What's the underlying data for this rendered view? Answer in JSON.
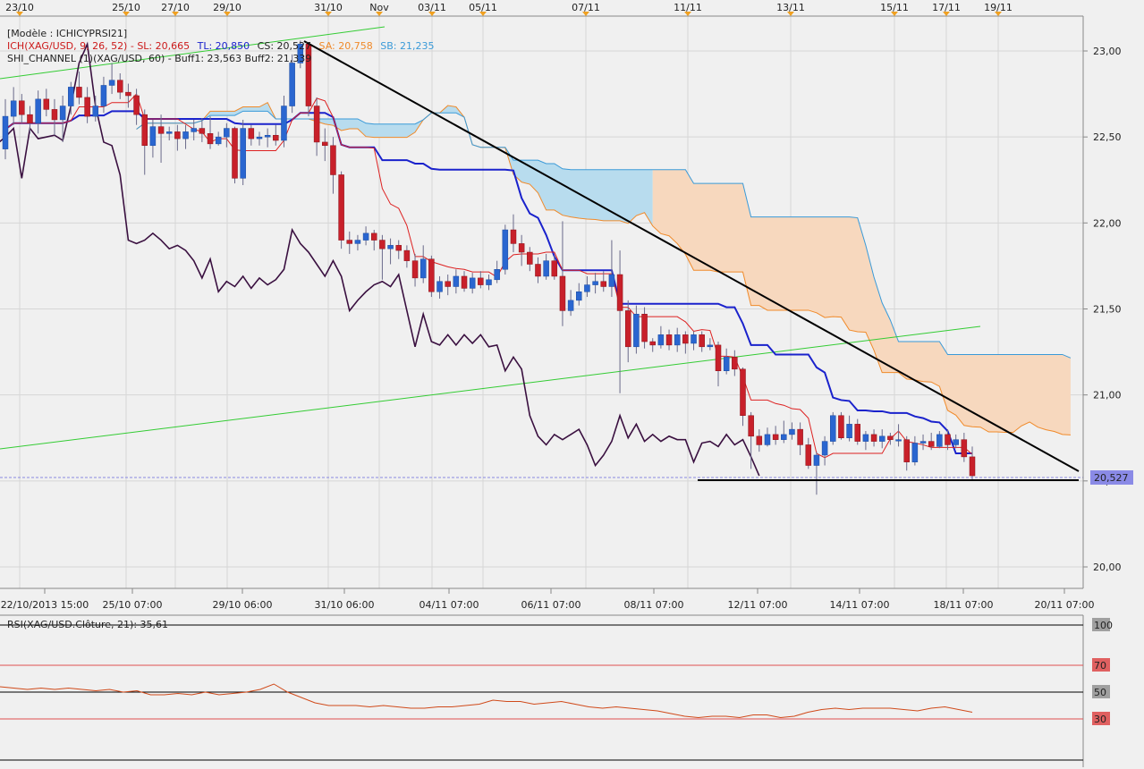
{
  "chart_data": {
    "type": "candlestick",
    "top_dates": [
      "23/10",
      "25/10",
      "27/10",
      "29/10",
      "31/10",
      "Nov",
      "03/11",
      "05/11",
      "07/11",
      "11/11",
      "13/11",
      "15/11",
      "17/11",
      "19/11"
    ],
    "bottom_dates": [
      "22/10/2013 15:00",
      "25/10 07:00",
      "29/10 06:00",
      "31/10 06:00",
      "04/11 07:00",
      "06/11 07:00",
      "08/11 07:00",
      "12/11 07:00",
      "14/11 07:00",
      "18/11 07:00",
      "20/11 07:00"
    ],
    "price_ticks": [
      "23,00",
      "22,50",
      "22,00",
      "21,50",
      "21,00",
      "20,50",
      "20,00"
    ],
    "price_tick_values": [
      23.0,
      22.5,
      22.0,
      21.5,
      21.0,
      20.5,
      20.0
    ],
    "ylim": [
      19.99,
      23.06
    ],
    "current_price_label": "20,527",
    "current_price": 20.527,
    "legend": {
      "model": "[Modèle : ICHICYPRSI21]",
      "ichimoku": {
        "prefix": "ICH(XAG/USD, 9, 26, 52) -  SL: 20,665",
        "tl": "TL: 20,850",
        "cs": "CS: 20,527",
        "sa": "SA: 20,758",
        "sb": "SB: 21,235"
      },
      "channel": "SHI_CHANNEL (1)(XAG/USD, 60) -  Buff1: 23,563  Buff2: 21,339"
    },
    "rsi": {
      "label": "RSI(XAG/USD.Clôture, 21): 35,61",
      "ticks": [
        "100",
        "70",
        "50",
        "30"
      ],
      "tick_values": [
        100,
        70,
        50,
        30
      ],
      "values": [
        54,
        53,
        52,
        53,
        52,
        53,
        52,
        51,
        52,
        50,
        51,
        48,
        48,
        49,
        48,
        50,
        48,
        49,
        50,
        52,
        56,
        50,
        46,
        42,
        40,
        40,
        40,
        39,
        40,
        39,
        38,
        38,
        39,
        39,
        40,
        41,
        44,
        43,
        43,
        41,
        42,
        43,
        41,
        39,
        38,
        39,
        38,
        37,
        36,
        34,
        32,
        31,
        32,
        32,
        31,
        33,
        33,
        31,
        32,
        35,
        37,
        38,
        37,
        38,
        38,
        38,
        37,
        36,
        38,
        39,
        37,
        35
      ]
    },
    "candles": [
      [
        22.43,
        22.62,
        22.72,
        22.37
      ],
      [
        22.62,
        22.71,
        22.79,
        22.57
      ],
      [
        22.71,
        22.63,
        22.75,
        22.58
      ],
      [
        22.63,
        22.58,
        22.68,
        22.52
      ],
      [
        22.58,
        22.72,
        22.77,
        22.52
      ],
      [
        22.72,
        22.66,
        22.78,
        22.62
      ],
      [
        22.66,
        22.6,
        22.72,
        22.51
      ],
      [
        22.6,
        22.68,
        22.74,
        22.47
      ],
      [
        22.68,
        22.79,
        22.82,
        22.63
      ],
      [
        22.79,
        22.73,
        22.88,
        22.69
      ],
      [
        22.73,
        22.62,
        22.79,
        22.58
      ],
      [
        22.62,
        22.68,
        22.74,
        22.59
      ],
      [
        22.68,
        22.8,
        22.85,
        22.64
      ],
      [
        22.8,
        22.83,
        22.93,
        22.75
      ],
      [
        22.83,
        22.76,
        22.87,
        22.72
      ],
      [
        22.76,
        22.74,
        22.81,
        22.67
      ],
      [
        22.74,
        22.63,
        22.78,
        22.57
      ],
      [
        22.63,
        22.45,
        22.66,
        22.28
      ],
      [
        22.45,
        22.56,
        22.6,
        22.38
      ],
      [
        22.56,
        22.52,
        22.63,
        22.35
      ],
      [
        22.52,
        22.53,
        22.56,
        22.48
      ],
      [
        22.53,
        22.49,
        22.57,
        22.42
      ],
      [
        22.49,
        22.53,
        22.57,
        22.43
      ],
      [
        22.53,
        22.55,
        22.6,
        22.48
      ],
      [
        22.55,
        22.52,
        22.61,
        22.47
      ],
      [
        22.52,
        22.46,
        22.62,
        22.43
      ],
      [
        22.46,
        22.5,
        22.53,
        22.45
      ],
      [
        22.5,
        22.55,
        22.58,
        22.44
      ],
      [
        22.55,
        22.26,
        22.56,
        22.23
      ],
      [
        22.26,
        22.55,
        22.6,
        22.22
      ],
      [
        22.55,
        22.49,
        22.57,
        22.45
      ],
      [
        22.49,
        22.5,
        22.53,
        22.45
      ],
      [
        22.5,
        22.51,
        22.55,
        22.44
      ],
      [
        22.51,
        22.48,
        22.57,
        22.45
      ],
      [
        22.48,
        22.68,
        22.74,
        22.44
      ],
      [
        22.68,
        22.93,
        22.98,
        22.64
      ],
      [
        22.93,
        23.04,
        23.06,
        22.9
      ],
      [
        23.04,
        22.68,
        23.05,
        22.62
      ],
      [
        22.68,
        22.47,
        22.73,
        22.39
      ],
      [
        22.47,
        22.45,
        22.55,
        22.36
      ],
      [
        22.45,
        22.28,
        22.5,
        22.17
      ],
      [
        22.28,
        21.9,
        22.3,
        21.85
      ],
      [
        21.9,
        21.88,
        21.95,
        21.82
      ],
      [
        21.88,
        21.9,
        21.93,
        21.84
      ],
      [
        21.9,
        21.94,
        21.98,
        21.87
      ],
      [
        21.94,
        21.9,
        21.96,
        21.84
      ],
      [
        21.9,
        21.85,
        21.93,
        21.67
      ],
      [
        21.85,
        21.87,
        21.91,
        21.76
      ],
      [
        21.87,
        21.84,
        21.9,
        21.79
      ],
      [
        21.84,
        21.78,
        21.87,
        21.74
      ],
      [
        21.78,
        21.68,
        21.82,
        21.63
      ],
      [
        21.68,
        21.79,
        21.87,
        21.65
      ],
      [
        21.79,
        21.6,
        21.81,
        21.57
      ],
      [
        21.6,
        21.66,
        21.69,
        21.56
      ],
      [
        21.66,
        21.63,
        21.7,
        21.58
      ],
      [
        21.63,
        21.69,
        21.73,
        21.59
      ],
      [
        21.69,
        21.62,
        21.72,
        21.6
      ],
      [
        21.62,
        21.68,
        21.71,
        21.59
      ],
      [
        21.68,
        21.64,
        21.72,
        21.62
      ],
      [
        21.64,
        21.67,
        21.7,
        21.61
      ],
      [
        21.67,
        21.73,
        21.78,
        21.65
      ],
      [
        21.73,
        21.96,
        21.99,
        21.7
      ],
      [
        21.96,
        21.88,
        22.05,
        21.83
      ],
      [
        21.88,
        21.83,
        21.93,
        21.75
      ],
      [
        21.83,
        21.76,
        21.86,
        21.72
      ],
      [
        21.76,
        21.69,
        21.8,
        21.65
      ],
      [
        21.69,
        21.78,
        21.82,
        21.67
      ],
      [
        21.78,
        21.69,
        21.81,
        21.67
      ],
      [
        21.69,
        21.49,
        22.01,
        21.4
      ],
      [
        21.49,
        21.55,
        21.61,
        21.46
      ],
      [
        21.55,
        21.6,
        21.65,
        21.52
      ],
      [
        21.6,
        21.64,
        21.69,
        21.57
      ],
      [
        21.64,
        21.66,
        21.71,
        21.59
      ],
      [
        21.66,
        21.63,
        21.72,
        21.6
      ],
      [
        21.63,
        21.7,
        21.9,
        21.57
      ],
      [
        21.7,
        21.49,
        21.84,
        21.01
      ],
      [
        21.49,
        21.28,
        21.55,
        21.19
      ],
      [
        21.28,
        21.47,
        21.52,
        21.24
      ],
      [
        21.47,
        21.31,
        21.51,
        21.27
      ],
      [
        21.31,
        21.29,
        21.33,
        21.25
      ],
      [
        21.29,
        21.35,
        21.4,
        21.27
      ],
      [
        21.35,
        21.29,
        21.38,
        21.26
      ],
      [
        21.29,
        21.35,
        21.39,
        21.25
      ],
      [
        21.35,
        21.3,
        21.37,
        21.24
      ],
      [
        21.3,
        21.35,
        21.37,
        21.26
      ],
      [
        21.35,
        21.28,
        21.37,
        21.25
      ],
      [
        21.28,
        21.29,
        21.33,
        21.26
      ],
      [
        21.29,
        21.14,
        21.31,
        21.05
      ],
      [
        21.14,
        21.22,
        21.27,
        21.12
      ],
      [
        21.22,
        21.15,
        21.26,
        21.11
      ],
      [
        21.15,
        20.88,
        21.16,
        20.82
      ],
      [
        20.88,
        20.76,
        20.9,
        20.57
      ],
      [
        20.76,
        20.71,
        20.8,
        20.67
      ],
      [
        20.71,
        20.77,
        20.81,
        20.7
      ],
      [
        20.77,
        20.74,
        20.82,
        20.71
      ],
      [
        20.74,
        20.77,
        20.85,
        20.72
      ],
      [
        20.77,
        20.8,
        20.84,
        20.74
      ],
      [
        20.8,
        20.71,
        20.84,
        20.65
      ],
      [
        20.71,
        20.59,
        20.75,
        20.57
      ],
      [
        20.59,
        20.65,
        20.67,
        20.42
      ],
      [
        20.65,
        20.73,
        20.76,
        20.59
      ],
      [
        20.73,
        20.88,
        20.9,
        20.71
      ],
      [
        20.88,
        20.75,
        20.9,
        20.74
      ],
      [
        20.75,
        20.83,
        20.88,
        20.73
      ],
      [
        20.83,
        20.73,
        20.86,
        20.71
      ],
      [
        20.73,
        20.77,
        20.79,
        20.68
      ],
      [
        20.77,
        20.73,
        20.8,
        20.7
      ],
      [
        20.73,
        20.76,
        20.8,
        20.69
      ],
      [
        20.76,
        20.74,
        20.78,
        20.71
      ],
      [
        20.74,
        20.74,
        20.83,
        20.7
      ],
      [
        20.74,
        20.61,
        20.76,
        20.56
      ],
      [
        20.61,
        20.72,
        20.76,
        20.59
      ],
      [
        20.72,
        20.73,
        20.77,
        20.68
      ],
      [
        20.73,
        20.7,
        20.78,
        20.68
      ],
      [
        20.7,
        20.77,
        20.79,
        20.69
      ],
      [
        20.77,
        20.71,
        20.8,
        20.68
      ],
      [
        20.71,
        20.74,
        20.77,
        20.69
      ],
      [
        20.74,
        20.64,
        20.78,
        20.61
      ],
      [
        20.64,
        20.53,
        20.7,
        20.51
      ]
    ]
  }
}
